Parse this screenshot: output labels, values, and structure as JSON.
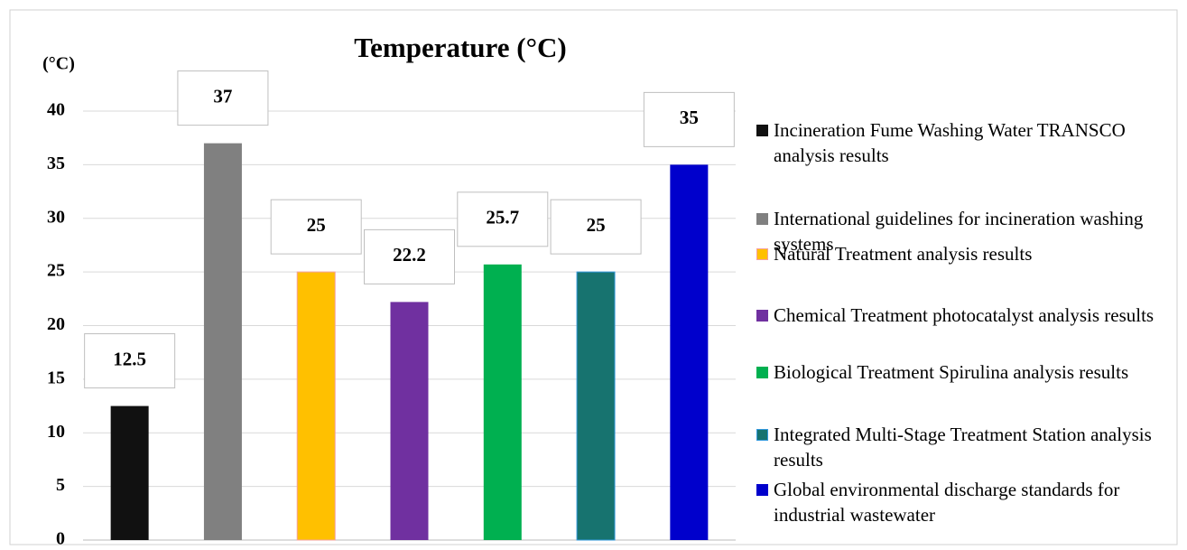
{
  "chart_data": {
    "type": "bar",
    "title": "Temperature (°C)",
    "y_label": "(°C)",
    "categories": [
      "Incineration Fume Washing Water TRANSCO analysis results",
      "International guidelines for incineration washing systems",
      "Natural Treatment  analysis results",
      "Chemical Treatment photocatalyst analysis results",
      "Biological Treatment Spirulina analysis results",
      "Integrated Multi-Stage Treatment Station analysis results",
      "Global environmental discharge standards for industrial wastewater"
    ],
    "values": [
      12.5,
      37,
      25,
      22.2,
      25.7,
      25,
      35
    ],
    "colors": [
      "#111111",
      "#808080",
      "#ffc000",
      "#7030a0",
      "#00b050",
      "#17736f",
      "#0000cc"
    ],
    "ylim": [
      0,
      40
    ],
    "yticks": [
      0,
      5,
      10,
      15,
      20,
      25,
      30,
      35,
      40
    ],
    "grid": true,
    "legend": "right"
  }
}
